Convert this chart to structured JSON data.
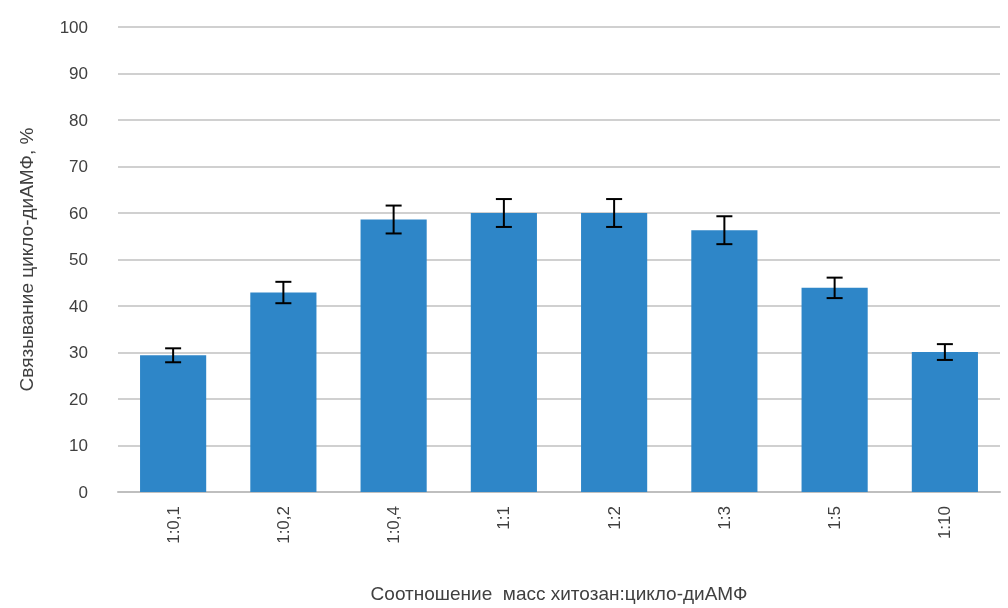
{
  "chart_data": {
    "type": "bar",
    "xlabel": "Соотношение  масс хитозан:цикло-диАМФ",
    "ylabel": "Связывание цикло-диАМФ, %",
    "categories": [
      "1:0,1",
      "1:0,2",
      "1:0,4",
      "1:1",
      "1:2",
      "1:3",
      "1:5",
      "1:10"
    ],
    "values": [
      29.4,
      42.9,
      58.6,
      60,
      60,
      56.3,
      43.9,
      30.1
    ],
    "errors": [
      1.5,
      2.3,
      3,
      3,
      3,
      3,
      2.2,
      1.7
    ],
    "color": "#2e86c8",
    "ylim": [
      0,
      100
    ],
    "yticks": [
      0,
      10,
      20,
      30,
      40,
      50,
      60,
      70,
      80,
      90,
      100
    ],
    "grid": "y"
  }
}
